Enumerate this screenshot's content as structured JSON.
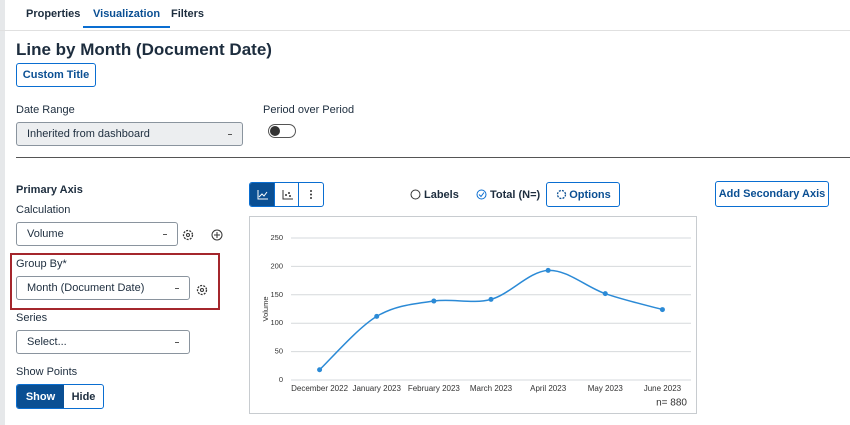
{
  "tabs": [
    "Properties",
    "Visualization",
    "Filters"
  ],
  "title": "Line by Month (Document Date)",
  "custom_title_button": "Custom Title",
  "date_range": {
    "label": "Date Range",
    "value": "Inherited from dashboard"
  },
  "period_over_period": {
    "label": "Period over Period"
  },
  "primary_axis": {
    "heading": "Primary Axis",
    "calculation": {
      "label": "Calculation",
      "value": "Volume"
    },
    "group_by": {
      "label": "Group By*",
      "value": "Month (Document Date)"
    },
    "series": {
      "label": "Series",
      "value": "Select..."
    },
    "show_points": {
      "label": "Show Points",
      "options": [
        "Show",
        "Hide"
      ]
    }
  },
  "toolbar": {
    "labels": "Labels",
    "total": "Total (N=)",
    "options": "Options",
    "add_secondary_axis": "Add Secondary Axis"
  },
  "chart_data": {
    "type": "line",
    "categories": [
      "December 2022",
      "January 2023",
      "February 2023",
      "March 2023",
      "April 2023",
      "May 2023",
      "June 2023"
    ],
    "values": [
      18,
      112,
      139,
      142,
      193,
      152,
      124
    ],
    "color": "#2b8ad6",
    "ylim": [
      0,
      250
    ],
    "yticks": [
      0,
      50,
      100,
      150,
      200,
      250
    ],
    "ylabel": "Volume",
    "grid": true,
    "show_points": true,
    "n_label": "n= 880"
  }
}
